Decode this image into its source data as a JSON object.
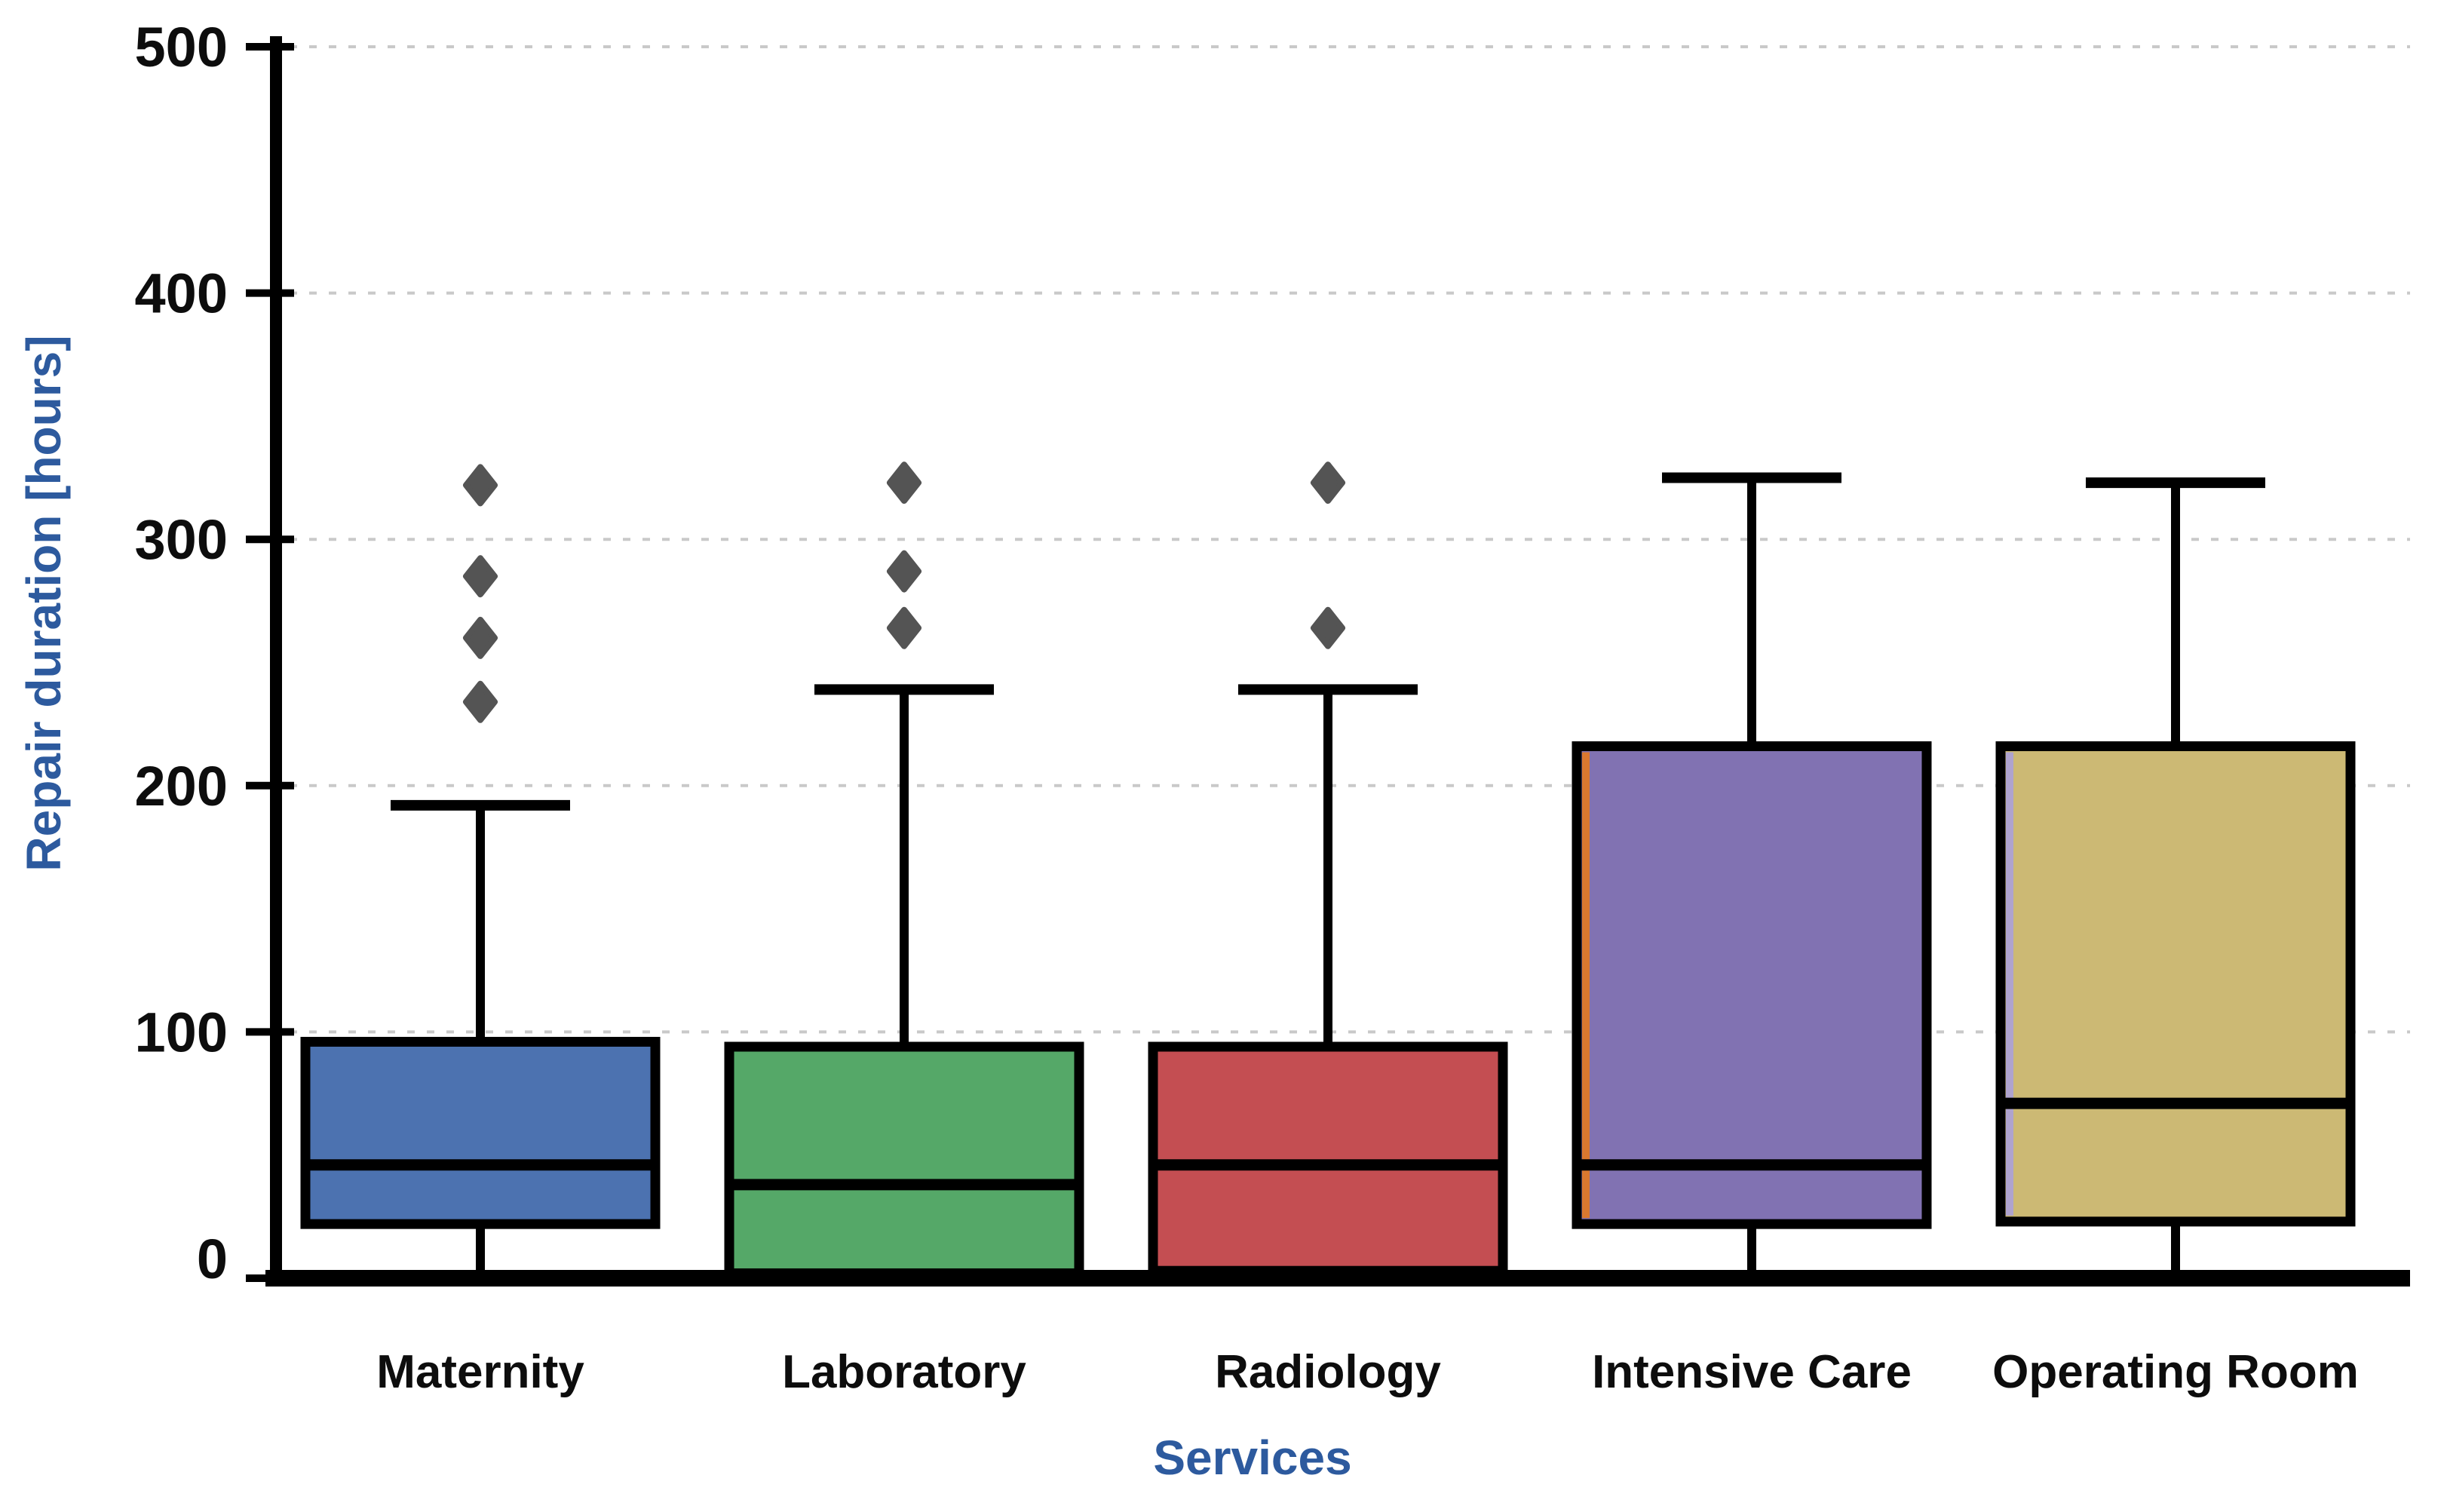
{
  "chart_data": {
    "type": "box",
    "title": "",
    "xlabel": "Services",
    "ylabel": "Repair duration [hours]",
    "ylim": [
      0,
      500
    ],
    "yticks": [
      0,
      100,
      200,
      300,
      400,
      500
    ],
    "grid": "horizontal dotted gridlines at every 100, light gray",
    "legend": "none",
    "categories": [
      "Maternity",
      "Laboratory",
      "Radiology",
      "Intensive Care",
      "Operating Room"
    ],
    "series": [
      {
        "name": "Maternity",
        "color": "#4C72B0",
        "accent_left": null,
        "whisker_low": 0,
        "q1": 22,
        "median": 46,
        "q3": 96,
        "whisker_high": 192,
        "outliers": [
          322,
          285,
          260,
          234
        ]
      },
      {
        "name": "Laboratory",
        "color": "#55A868",
        "accent_left": null,
        "whisker_low": 0,
        "q1": 2,
        "median": 38,
        "q3": 94,
        "whisker_high": 239,
        "outliers": [
          323,
          287,
          264
        ]
      },
      {
        "name": "Radiology",
        "color": "#C44E52",
        "accent_left": null,
        "whisker_low": 0,
        "q1": 3,
        "median": 46,
        "q3": 94,
        "whisker_high": 239,
        "outliers": [
          323,
          264
        ]
      },
      {
        "name": "Intensive Care",
        "color": "#8172B2",
        "accent_left": "#D9782F",
        "whisker_low": 0,
        "q1": 22,
        "median": 46,
        "q3": 216,
        "whisker_high": 325,
        "outliers": []
      },
      {
        "name": "Operating Room",
        "color": "#CCB974",
        "accent_left": "#AFA3CE",
        "whisker_low": 0,
        "q1": 23,
        "median": 71,
        "q3": 216,
        "whisker_high": 323,
        "outliers": []
      }
    ],
    "colors": {
      "axis": "#000000",
      "box_border": "#000000",
      "outlier_marker": "#545454",
      "gridline": "#c9c9c9",
      "axis_title_blue": "#2D5A9E",
      "tick_label": "#0d0d0d"
    },
    "marker": "diamond outliers, gray"
  }
}
